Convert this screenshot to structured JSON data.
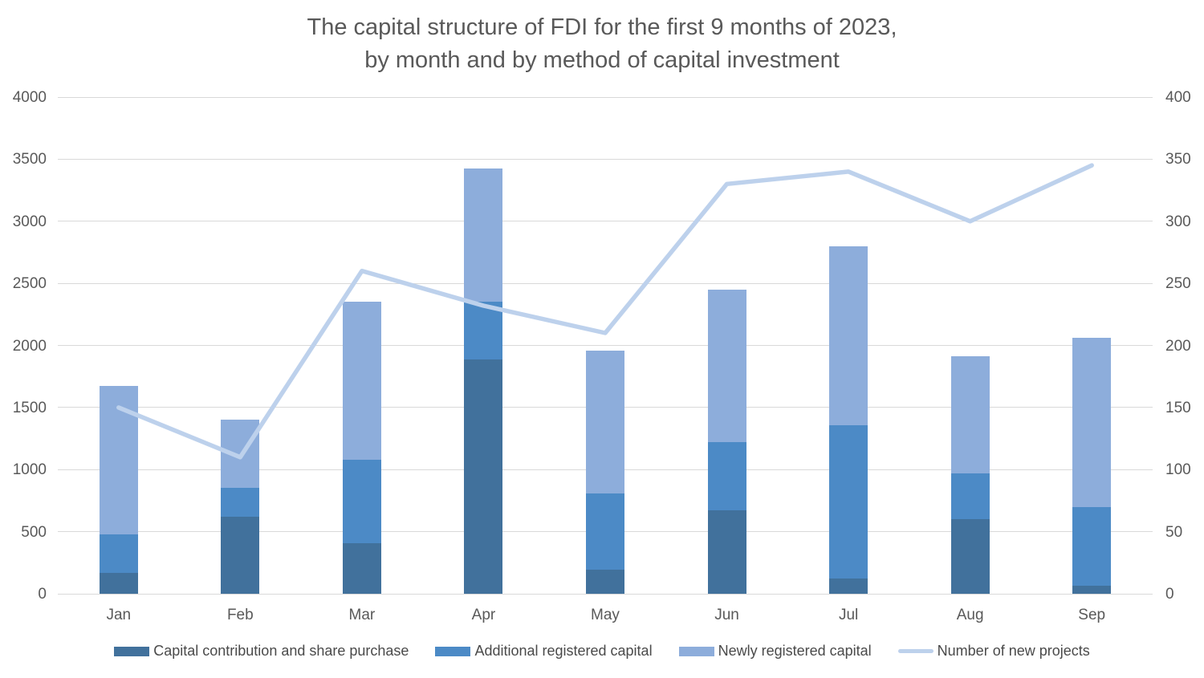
{
  "title": {
    "line1": "The capital structure of FDI for the first 9 months of 2023,",
    "line2": "by month and by method of capital investment"
  },
  "chart_data": {
    "type": "combo-stacked-bar-line",
    "categories": [
      "Jan",
      "Feb",
      "Mar",
      "Apr",
      "May",
      "Jun",
      "Jul",
      "Aug",
      "Sep"
    ],
    "series": [
      {
        "name": "Capital contribution and share purchase",
        "type": "bar-stacked",
        "axis": "left",
        "color": "#41719C",
        "values": [
          170,
          620,
          410,
          1890,
          195,
          670,
          120,
          600,
          65
        ]
      },
      {
        "name": "Additional registered capital",
        "type": "bar-stacked",
        "axis": "left",
        "color": "#4C8AC6",
        "values": [
          305,
          230,
          670,
          460,
          615,
          550,
          1240,
          370,
          635
        ]
      },
      {
        "name": "Newly registered capital",
        "type": "bar-stacked",
        "axis": "left",
        "color": "#8DADDB",
        "values": [
          1200,
          550,
          1270,
          1075,
          1150,
          1230,
          1440,
          940,
          1360
        ]
      },
      {
        "name": "Number of new projects",
        "type": "line",
        "axis": "right",
        "color": "#BDD1EC",
        "values": [
          150,
          110,
          260,
          232,
          210,
          330,
          340,
          300,
          345
        ]
      }
    ],
    "stacked_totals": [
      1675,
      1400,
      2350,
      3425,
      1960,
      2450,
      2800,
      1910,
      2060
    ],
    "left_axis": {
      "min": 0,
      "max": 4000,
      "step": 500,
      "ticks": [
        0,
        500,
        1000,
        1500,
        2000,
        2500,
        3000,
        3500,
        4000
      ]
    },
    "right_axis": {
      "min": 0,
      "max": 400,
      "step": 50,
      "ticks": [
        0,
        50,
        100,
        150,
        200,
        250,
        300,
        350,
        400
      ]
    },
    "grid": true,
    "legend_position": "bottom"
  },
  "colors": {
    "gridline": "#d9d9d9",
    "axis_text": "#595959",
    "title_text": "#595959",
    "legend_text": "#4a4a4a",
    "background": "#ffffff"
  }
}
